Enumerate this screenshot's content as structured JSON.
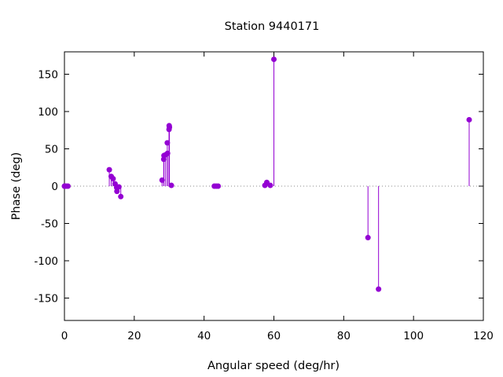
{
  "chart_data": {
    "type": "scatter",
    "title": "Station 9440171",
    "xlabel": "Angular speed (deg/hr)",
    "ylabel": "Phase (deg)",
    "xlim": [
      0,
      120
    ],
    "ylim": [
      -180,
      180
    ],
    "xticks": [
      0,
      20,
      40,
      60,
      80,
      100,
      120
    ],
    "yticks": [
      -150,
      -100,
      -50,
      0,
      50,
      100,
      150
    ],
    "grid": false,
    "legend": "none",
    "zero_line": "dotted",
    "marker_color": "#9400d3",
    "series": [
      {
        "style": "impulses-with-points",
        "x": [
          0.0,
          0.04,
          0.08,
          0.5,
          1.0,
          12.85,
          13.4,
          13.94,
          14.5,
          14.96,
          15.04,
          15.59,
          16.14,
          27.97,
          28.44,
          28.51,
          28.98,
          29.46,
          29.53,
          29.96,
          30.0,
          30.08,
          30.63,
          43.48,
          42.93,
          44.03,
          57.42,
          57.97,
          58.98,
          60.0,
          86.95,
          89.98,
          115.94
        ],
        "y": [
          0,
          0,
          0,
          0,
          0,
          22,
          13,
          10,
          3,
          -2,
          -7,
          -1,
          -14,
          8,
          36,
          41,
          42,
          58,
          44,
          76,
          81,
          79,
          1,
          0,
          0,
          0,
          1,
          5,
          1,
          170,
          -69,
          -138,
          89
        ]
      }
    ]
  }
}
